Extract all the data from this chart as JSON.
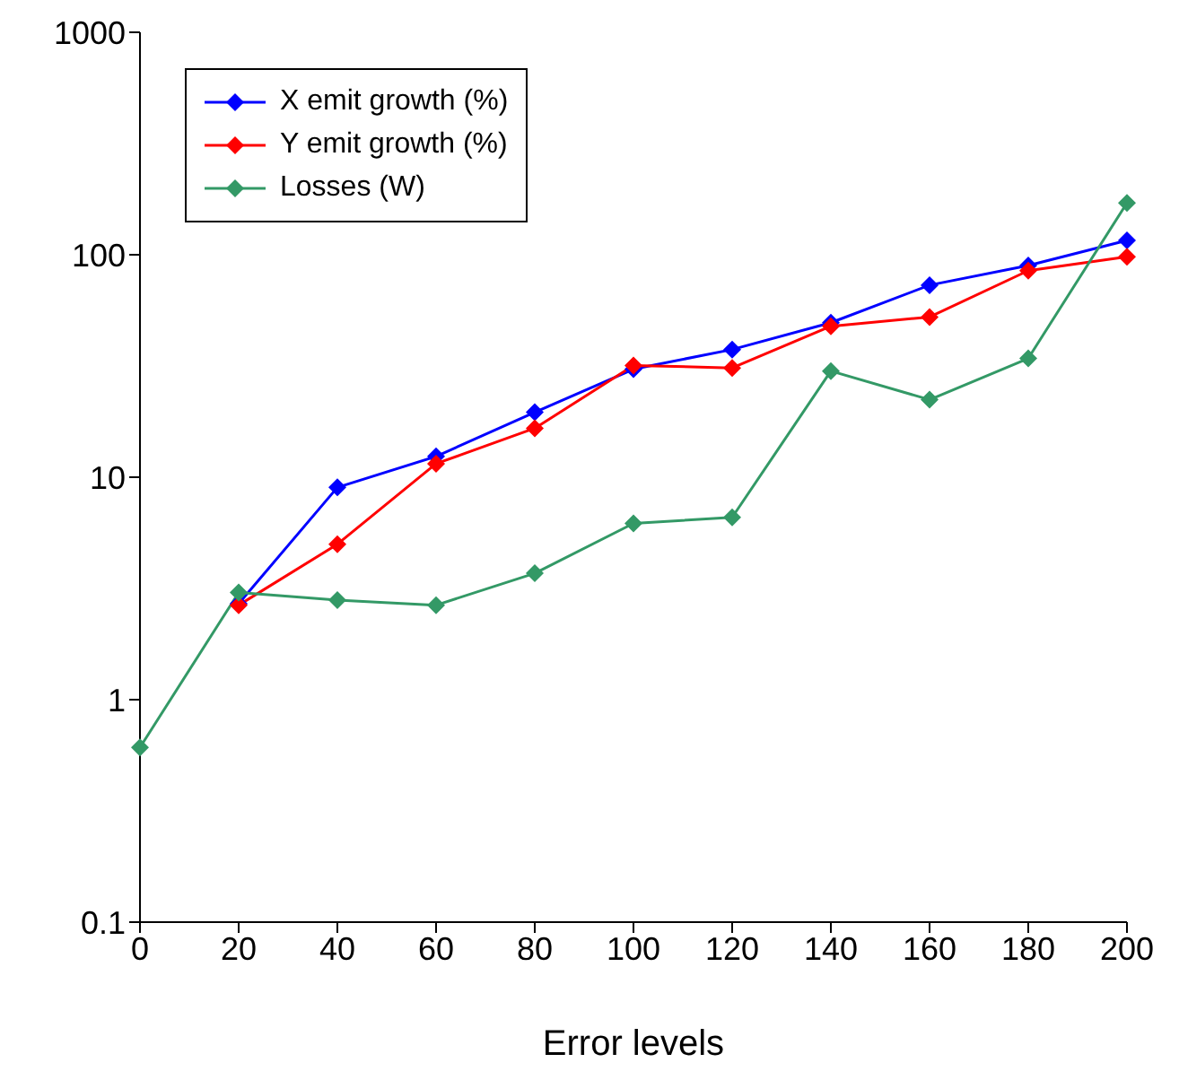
{
  "chart_data": {
    "type": "line",
    "xlabel": "Error levels",
    "categories": [
      "0",
      "20",
      "40",
      "60",
      "80",
      "100",
      "120",
      "140",
      "160",
      "180",
      "200"
    ],
    "series": [
      {
        "name": "X emit growth (%)",
        "color": "#0000ff",
        "values": [
          null,
          2.7,
          9.0,
          12.4,
          19.6,
          30.6,
          37.5,
          49.5,
          73,
          89.5,
          116
        ]
      },
      {
        "name": "Y emit growth (%)",
        "color": "#ff0000",
        "values": [
          null,
          2.66,
          5.0,
          11.5,
          16.6,
          31.8,
          31,
          47.7,
          52.5,
          84.8,
          98
        ]
      },
      {
        "name": "Losses (W)",
        "color": "#339966",
        "values": [
          0.61,
          3.03,
          2.8,
          2.66,
          3.7,
          6.2,
          6.6,
          30,
          22.3,
          34.2,
          171
        ]
      }
    ],
    "log": "y",
    "ylim": [
      0.1,
      1000
    ],
    "yticks": [
      0.1,
      1,
      10,
      100,
      1000
    ],
    "grid": false,
    "legend": "top left",
    "marker": "diamond",
    "line_style": "solid"
  }
}
